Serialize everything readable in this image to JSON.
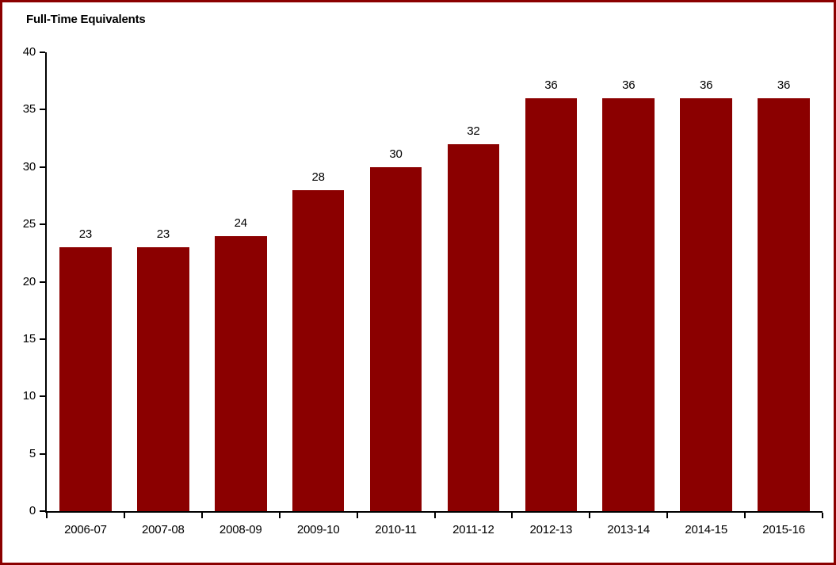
{
  "chart_data": {
    "type": "bar",
    "title": "Full-Time Equivalents",
    "categories": [
      "2006-07",
      "2007-08",
      "2008-09",
      "2009-10",
      "2010-11",
      "2011-12",
      "2012-13",
      "2013-14",
      "2014-15",
      "2015-16"
    ],
    "values": [
      23,
      23,
      24,
      28,
      30,
      32,
      36,
      36,
      36,
      36
    ],
    "xlabel": "",
    "ylabel": "",
    "ylim": [
      0,
      40
    ],
    "yticks": [
      0,
      5,
      10,
      15,
      20,
      25,
      30,
      35,
      40
    ],
    "grid": false,
    "legend_position": "none",
    "value_labels_shown": true,
    "colors": {
      "bar": "#8B0000",
      "frame_border": "#8B0000",
      "axis": "#000000",
      "text": "#000000",
      "background": "#FFFFFF"
    }
  }
}
